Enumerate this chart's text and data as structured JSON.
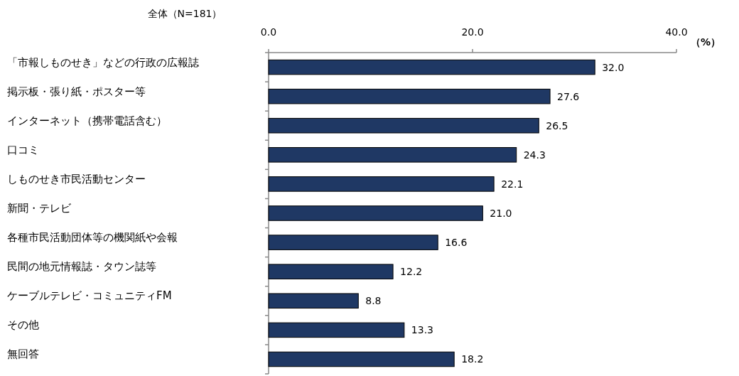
{
  "chart_data": {
    "type": "bar",
    "orientation": "horizontal",
    "title": "全体（N=181）",
    "xlabel": "（%）",
    "categories": [
      "「市報しものせき」などの行政の広報誌",
      "掲示板・張り紙・ポスター等",
      "インターネット（携帯電話含む）",
      "口コミ",
      "しものせき市民活動センター",
      "新聞・テレビ",
      "各種市民活動団体等の機関紙や会報",
      "民間の地元情報誌・タウン誌等",
      "ケーブルテレビ・コミュニティFM",
      "その他",
      "無回答"
    ],
    "values": [
      32.0,
      27.6,
      26.5,
      24.3,
      22.1,
      21.0,
      16.6,
      12.2,
      8.8,
      13.3,
      18.2
    ],
    "value_labels": [
      "32.0",
      "27.6",
      "26.5",
      "24.3",
      "22.1",
      "21.0",
      "16.6",
      "12.2",
      "8.8",
      "13.3",
      "18.2"
    ],
    "color": "#1f3864",
    "xlim": [
      0,
      40
    ],
    "xticks": [
      {
        "value": 0,
        "label": "0.0"
      },
      {
        "value": 20,
        "label": "20.0"
      },
      {
        "value": 40,
        "label": "40.0"
      }
    ],
    "grid": false
  }
}
